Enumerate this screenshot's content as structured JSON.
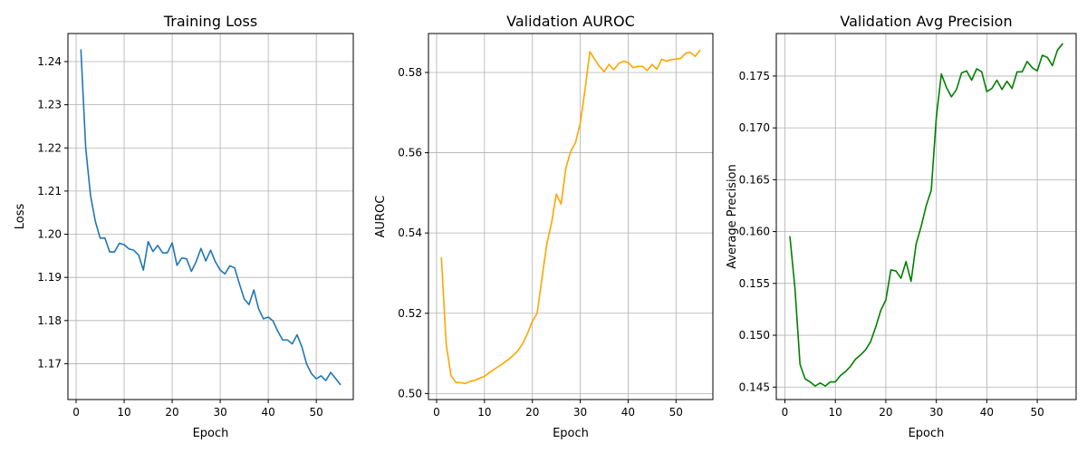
{
  "chart_data": [
    {
      "type": "line",
      "title": "Training Loss",
      "xlabel": "Epoch",
      "ylabel": "Loss",
      "xlim": [
        -1.7,
        57.7
      ],
      "ylim": [
        1.1617,
        1.2465
      ],
      "xticks": [
        0,
        10,
        20,
        30,
        40,
        50
      ],
      "xtick_labels": [
        "0",
        "10",
        "20",
        "30",
        "40",
        "50"
      ],
      "yticks": [
        1.17,
        1.18,
        1.19,
        1.2,
        1.21,
        1.22,
        1.23,
        1.24
      ],
      "ytick_labels": [
        "1.17",
        "1.18",
        "1.19",
        "1.20",
        "1.21",
        "1.22",
        "1.23",
        "1.24"
      ],
      "grid": true,
      "color": "#1f77b4",
      "series": [
        {
          "x": [
            1,
            2,
            3,
            4,
            5,
            6,
            7,
            8,
            9,
            10,
            11,
            12,
            13,
            14,
            15,
            16,
            17,
            18,
            19,
            20,
            21,
            22,
            23,
            24,
            25,
            26,
            27,
            28,
            29,
            30,
            31,
            32,
            33,
            34,
            35,
            36,
            37,
            38,
            39,
            40,
            41,
            42,
            43,
            44,
            45,
            46,
            47,
            48,
            49,
            50,
            51,
            52,
            53,
            54,
            55
          ],
          "values": [
            1.2427,
            1.22,
            1.209,
            1.203,
            1.1991,
            1.1991,
            1.1959,
            1.1959,
            1.1979,
            1.1976,
            1.1966,
            1.1963,
            1.1952,
            1.1917,
            1.1983,
            1.196,
            1.1974,
            1.1957,
            1.1957,
            1.198,
            1.1928,
            1.1945,
            1.1943,
            1.1914,
            1.1937,
            1.1967,
            1.1938,
            1.1963,
            1.1936,
            1.1917,
            1.1908,
            1.1927,
            1.1922,
            1.1885,
            1.185,
            1.1837,
            1.1871,
            1.1827,
            1.1804,
            1.1808,
            1.1799,
            1.1775,
            1.1755,
            1.1755,
            1.1746,
            1.1767,
            1.1739,
            1.1699,
            1.1677,
            1.1665,
            1.1672,
            1.1661,
            1.168,
            1.1666,
            1.1652
          ]
        }
      ]
    },
    {
      "type": "line",
      "title": "Validation AUROC",
      "xlabel": "Epoch",
      "ylabel": "AUROC",
      "xlim": [
        -1.7,
        57.7
      ],
      "ylim": [
        0.4985,
        0.5897
      ],
      "xticks": [
        0,
        10,
        20,
        30,
        40,
        50
      ],
      "xtick_labels": [
        "0",
        "10",
        "20",
        "30",
        "40",
        "50"
      ],
      "yticks": [
        0.5,
        0.52,
        0.54,
        0.56,
        0.58
      ],
      "ytick_labels": [
        "0.50",
        "0.52",
        "0.54",
        "0.56",
        "0.58"
      ],
      "grid": true,
      "color": "#ffa500",
      "series": [
        {
          "x": [
            1,
            2,
            3,
            4,
            5,
            6,
            7,
            8,
            9,
            10,
            11,
            12,
            13,
            14,
            15,
            16,
            17,
            18,
            19,
            20,
            21,
            22,
            23,
            24,
            25,
            26,
            27,
            28,
            29,
            30,
            31,
            32,
            33,
            34,
            35,
            36,
            37,
            38,
            39,
            40,
            41,
            42,
            43,
            44,
            45,
            46,
            47,
            48,
            49,
            50,
            51,
            52,
            53,
            54,
            55
          ],
          "values": [
            0.5338,
            0.5123,
            0.5045,
            0.5028,
            0.5027,
            0.5025,
            0.503,
            0.5033,
            0.5038,
            0.5043,
            0.5052,
            0.506,
            0.5068,
            0.5076,
            0.5085,
            0.5095,
            0.5107,
            0.5125,
            0.515,
            0.518,
            0.52,
            0.5287,
            0.5372,
            0.5425,
            0.5497,
            0.5472,
            0.5562,
            0.5603,
            0.5625,
            0.5673,
            0.5757,
            0.5852,
            0.5833,
            0.5815,
            0.5802,
            0.582,
            0.5807,
            0.5822,
            0.5828,
            0.5825,
            0.5812,
            0.5815,
            0.5815,
            0.5805,
            0.582,
            0.5808,
            0.5833,
            0.5828,
            0.5832,
            0.5833,
            0.5835,
            0.5848,
            0.585,
            0.584,
            0.5855
          ]
        }
      ]
    },
    {
      "type": "line",
      "title": "Validation Avg Precision",
      "xlabel": "Epoch",
      "ylabel": "Average Precision",
      "xlim": [
        -1.7,
        57.7
      ],
      "ylim": [
        0.1438,
        0.1791
      ],
      "xticks": [
        0,
        10,
        20,
        30,
        40,
        50
      ],
      "xtick_labels": [
        "0",
        "10",
        "20",
        "30",
        "40",
        "50"
      ],
      "yticks": [
        0.145,
        0.15,
        0.155,
        0.16,
        0.165,
        0.17,
        0.175
      ],
      "ytick_labels": [
        "0.145",
        "0.150",
        "0.155",
        "0.160",
        "0.165",
        "0.170",
        "0.175"
      ],
      "grid": true,
      "color": "#008000",
      "series": [
        {
          "x": [
            1,
            2,
            3,
            4,
            5,
            6,
            7,
            8,
            9,
            10,
            11,
            12,
            13,
            14,
            15,
            16,
            17,
            18,
            19,
            20,
            21,
            22,
            23,
            24,
            25,
            26,
            27,
            28,
            29,
            30,
            31,
            32,
            33,
            34,
            35,
            36,
            37,
            38,
            39,
            40,
            41,
            42,
            43,
            44,
            45,
            46,
            47,
            48,
            49,
            50,
            51,
            52,
            53,
            54,
            55
          ],
          "values": [
            0.1595,
            0.1545,
            0.1472,
            0.1458,
            0.1455,
            0.1451,
            0.1454,
            0.1451,
            0.1455,
            0.1455,
            0.1461,
            0.1465,
            0.147,
            0.1477,
            0.1481,
            0.1486,
            0.1494,
            0.1508,
            0.1524,
            0.1534,
            0.1563,
            0.1562,
            0.1555,
            0.1571,
            0.1552,
            0.1588,
            0.1605,
            0.1625,
            0.164,
            0.171,
            0.1752,
            0.1739,
            0.173,
            0.1737,
            0.1753,
            0.1755,
            0.1746,
            0.1757,
            0.1754,
            0.1735,
            0.1738,
            0.1746,
            0.1737,
            0.1745,
            0.1738,
            0.1754,
            0.1754,
            0.1764,
            0.1758,
            0.1755,
            0.177,
            0.1768,
            0.176,
            0.1775,
            0.1781
          ]
        }
      ]
    }
  ]
}
